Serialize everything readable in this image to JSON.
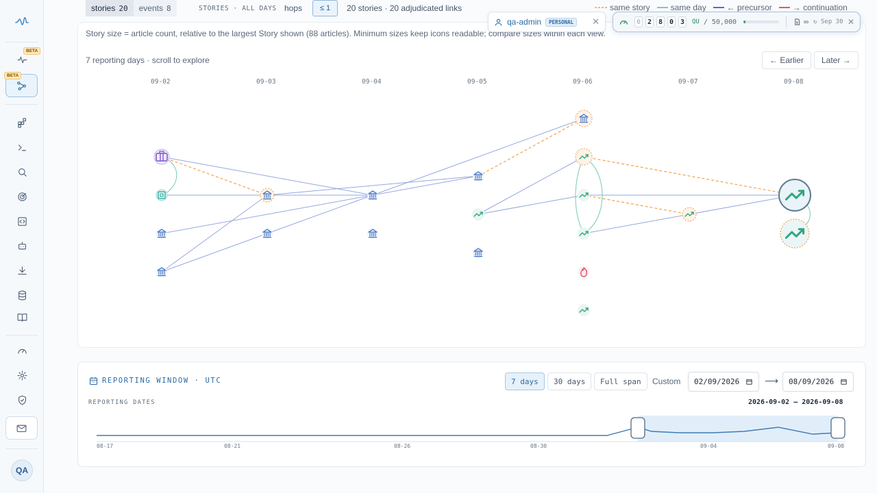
{
  "top_bar": {
    "view_toggle": [
      {
        "label": "stories",
        "count": "20"
      },
      {
        "label": "events",
        "count": "8"
      }
    ],
    "scope_label": "STORIES · ALL DAYS",
    "hops_label": "hops",
    "hops_value": "≤ 1",
    "summary": "20 stories · 20 adjudicated links"
  },
  "legend": [
    {
      "label": "same story",
      "color": "#f5a04a",
      "style": "dashed"
    },
    {
      "label": "same day",
      "color": "#5fbfa8",
      "style": "solid"
    },
    {
      "label": "← precursor",
      "color": "#4a6fd0",
      "style": "solid"
    },
    {
      "label": "→ continuation",
      "color": "#e0566f",
      "style": "solid"
    }
  ],
  "user_chip": {
    "name": "qa-admin",
    "badge": "PERSONAL"
  },
  "quota": {
    "digits": [
      "0",
      "2",
      "8",
      "0",
      "3"
    ],
    "unit": "QU",
    "limit": "/ 50,000",
    "used_fraction": 0.056,
    "plan_symbol": "∞",
    "renew": "↻ Sep 30"
  },
  "graph": {
    "hint": "Story size = article count, relative to the largest Story shown (88 articles). Minimum sizes keep icons readable; compare sizes within each view.",
    "scroll_hint": "7 reporting days · scroll to explore",
    "earlier_label": "← Earlier",
    "later_label": "Later →",
    "days": [
      "09-02",
      "09-03",
      "09-04",
      "09-05",
      "09-06",
      "09-07",
      "09-08"
    ]
  },
  "reporting_window": {
    "title": "REPORTING WINDOW · UTC",
    "dates_label": "REPORTING DATES",
    "presets": [
      "7 days",
      "30 days",
      "Full span"
    ],
    "custom_label": "Custom",
    "start_date": "02/09/2026",
    "end_date": "08/09/2026",
    "arrow": "⟶",
    "range_text": "2026-09-02 — 2026-09-08",
    "axis_ticks": [
      "08-17",
      "08-21",
      "08-26",
      "08-30",
      "09-04",
      "09-08"
    ]
  },
  "sidebar": {
    "beta_label": "BETA",
    "avatar": "QA"
  },
  "colors": {
    "accent": "#2b6aa6",
    "same_story": "#f5a04a",
    "same_day": "#5fbfa8",
    "precursor": "#4a6fd0",
    "continuation": "#e0566f"
  }
}
